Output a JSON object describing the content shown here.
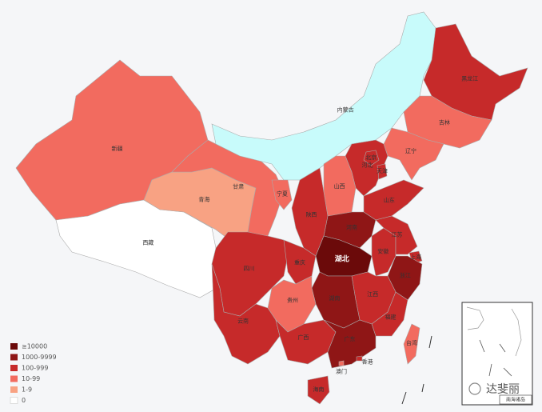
{
  "map": {
    "legend": [
      {
        "label": "≥10000",
        "color": "#6b0a0a"
      },
      {
        "label": "1000-9999",
        "color": "#8f1616"
      },
      {
        "label": "100-999",
        "color": "#c62a2a"
      },
      {
        "label": "10-99",
        "color": "#f26b5f"
      },
      {
        "label": "1-9",
        "color": "#f8a283"
      },
      {
        "label": "0",
        "color": "#ffffff"
      }
    ],
    "regions": [
      {
        "name": "新疆",
        "level": "10-99"
      },
      {
        "name": "西藏",
        "level": "0"
      },
      {
        "name": "青海",
        "level": "1-9"
      },
      {
        "name": "甘肃",
        "level": "10-99"
      },
      {
        "name": "内蒙古",
        "color": "#c8fbfb"
      },
      {
        "name": "黑龙江",
        "level": "100-999"
      },
      {
        "name": "吉林",
        "level": "10-99"
      },
      {
        "name": "辽宁",
        "level": "10-99"
      },
      {
        "name": "河北",
        "level": "100-999"
      },
      {
        "name": "北京",
        "level": "100-999"
      },
      {
        "name": "天津",
        "level": "100-999"
      },
      {
        "name": "山西",
        "level": "10-99"
      },
      {
        "name": "山东",
        "level": "100-999"
      },
      {
        "name": "河南",
        "level": "1000-9999"
      },
      {
        "name": "陕西",
        "level": "100-999"
      },
      {
        "name": "宁夏",
        "level": "10-99"
      },
      {
        "name": "四川",
        "level": "100-999"
      },
      {
        "name": "重庆",
        "level": "100-999"
      },
      {
        "name": "湖北",
        "level": "≥10000"
      },
      {
        "name": "安徽",
        "level": "100-999"
      },
      {
        "name": "江苏",
        "level": "100-999"
      },
      {
        "name": "上海",
        "level": "100-999"
      },
      {
        "name": "浙江",
        "level": "1000-9999"
      },
      {
        "name": "江西",
        "level": "100-999"
      },
      {
        "name": "湖南",
        "level": "1000-9999"
      },
      {
        "name": "福建",
        "level": "100-999"
      },
      {
        "name": "贵州",
        "level": "10-99"
      },
      {
        "name": "云南",
        "level": "100-999"
      },
      {
        "name": "广西",
        "level": "100-999"
      },
      {
        "name": "广东",
        "level": "1000-9999"
      },
      {
        "name": "澳门",
        "level": "10-99"
      },
      {
        "name": "香港",
        "level": "100-999"
      },
      {
        "name": "海南",
        "level": "100-999"
      },
      {
        "name": "台湾",
        "level": "10-99"
      }
    ],
    "inset_label": "南海诸岛",
    "watermark": "达斐丽"
  }
}
